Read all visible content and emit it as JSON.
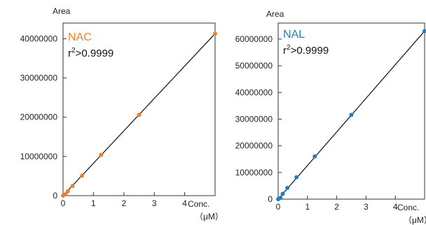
{
  "chart_data": [
    {
      "type": "scatter",
      "ylabel": "Area",
      "xlabel": "Conc.",
      "xlabel_unit": "（μM）",
      "xlim": [
        0,
        5
      ],
      "ylim": [
        0,
        44000000
      ],
      "x_ticks": [
        0,
        1,
        2,
        3,
        4
      ],
      "y_ticks": [
        0,
        10000000,
        20000000,
        30000000,
        40000000
      ],
      "x_tick_labels": [
        "0",
        "1",
        "2",
        "3",
        "4"
      ],
      "y_tick_labels": [
        "0",
        "10000000",
        "20000000",
        "30000000",
        "40000000"
      ],
      "series": [
        {
          "name": "NAC",
          "color": "#f07f2a",
          "x": [
            0.0,
            0.078,
            0.156,
            0.313,
            0.625,
            1.25,
            2.5,
            5.0
          ],
          "y": [
            0,
            350000,
            1100000,
            2500000,
            5100000,
            10400000,
            20600000,
            41300000
          ]
        }
      ],
      "annotation": {
        "r2_base": "r",
        "r2_sup": "2",
        "r2_rest": ">0.9999"
      },
      "fit_line": {
        "x": [
          0,
          5.0
        ],
        "y": [
          0,
          41300000
        ]
      }
    },
    {
      "type": "scatter",
      "ylabel": "Area",
      "xlabel": "Conc.",
      "xlabel_unit": "（μM）",
      "xlim": [
        0,
        5
      ],
      "ylim": [
        0,
        66000000
      ],
      "x_ticks": [
        0,
        1,
        2,
        3,
        4
      ],
      "y_ticks": [
        0,
        10000000,
        20000000,
        30000000,
        40000000,
        50000000,
        60000000
      ],
      "x_tick_labels": [
        "0",
        "1",
        "2",
        "3",
        "4"
      ],
      "y_tick_labels": [
        "0",
        "10000000",
        "20000000",
        "30000000",
        "40000000",
        "50000000",
        "60000000"
      ],
      "series": [
        {
          "name": "NAL",
          "color": "#1f7fc2",
          "x": [
            0.0,
            0.078,
            0.156,
            0.313,
            0.625,
            1.25,
            2.5,
            5.0
          ],
          "y": [
            0,
            500000,
            2000000,
            4200000,
            8200000,
            16000000,
            31600000,
            63000000
          ]
        }
      ],
      "annotation": {
        "r2_base": "r",
        "r2_sup": "2",
        "r2_rest": ">0.9999"
      },
      "fit_line": {
        "x": [
          0,
          5.0
        ],
        "y": [
          0,
          63000000
        ]
      }
    }
  ]
}
